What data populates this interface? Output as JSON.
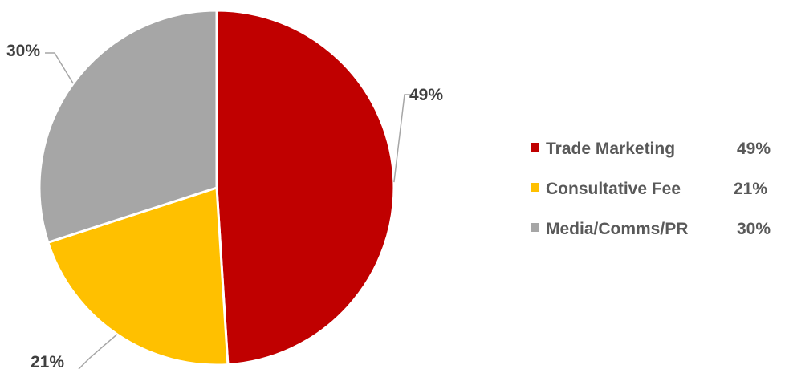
{
  "chart_data": {
    "type": "pie",
    "categories": [
      "Trade Marketing",
      "Consultative Fee",
      "Media/Comms/PR"
    ],
    "values": [
      49,
      21,
      30
    ],
    "unit": "%",
    "colors": [
      "#c00000",
      "#ffc000",
      "#a6a6a6"
    ],
    "data_labels": [
      "49%",
      "21%",
      "30%"
    ],
    "legend": {
      "position": "right",
      "entries": [
        {
          "label": "Trade Marketing",
          "value": "49%"
        },
        {
          "label": "Consultative Fee",
          "value": "21%"
        },
        {
          "label": "Media/Comms/PR",
          "value": "30%"
        }
      ]
    }
  }
}
